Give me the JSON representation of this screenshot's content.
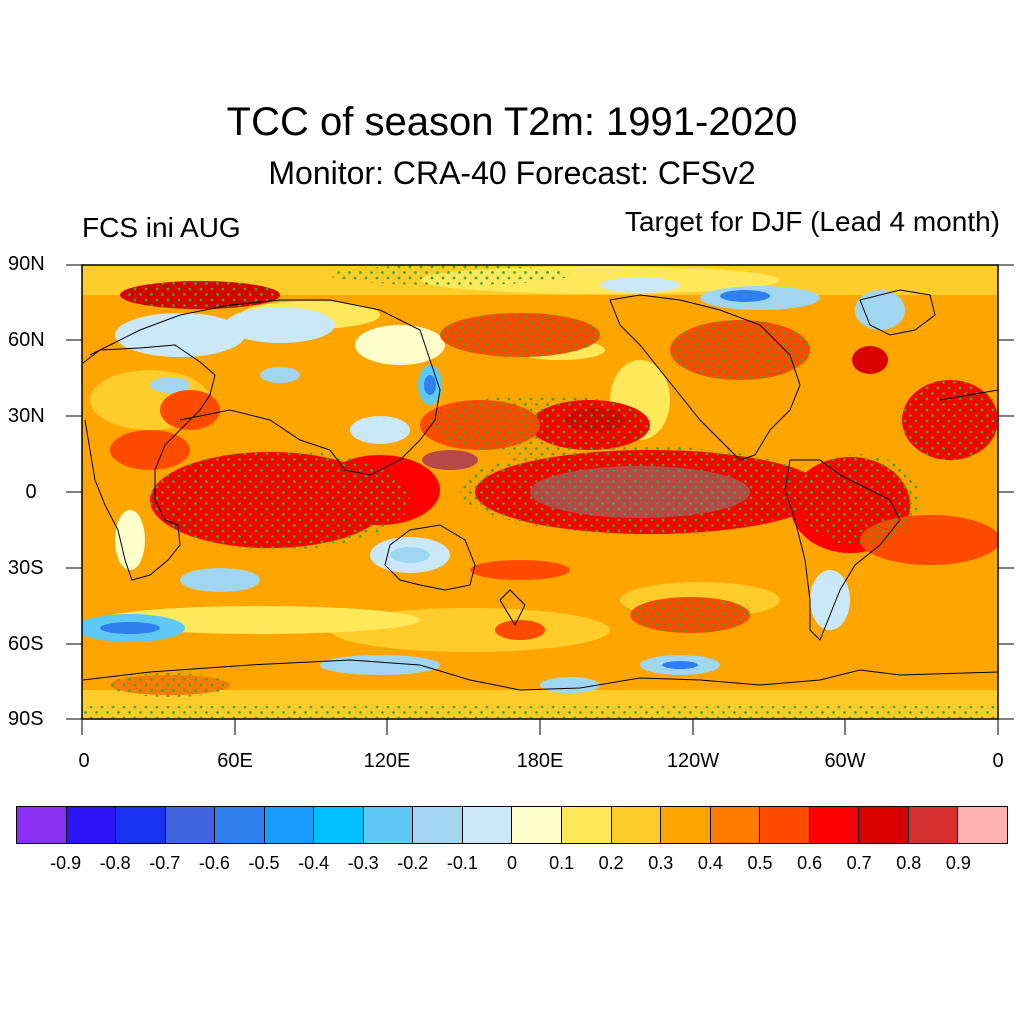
{
  "title": "TCC of season T2m: 1991-2020",
  "subtitle": "Monitor: CRA-40   Forecast: CFSv2",
  "left_label": "FCS ini AUG",
  "right_label": "Target for DJF (Lead 4 month)",
  "lat_labels": [
    "90N",
    "60N",
    "30N",
    "0",
    "30S",
    "60S",
    "90S"
  ],
  "lon_labels": [
    "0",
    "60E",
    "120E",
    "180E",
    "120W",
    "60W",
    "0"
  ],
  "colorbar": {
    "colors": [
      "#8b2ff0",
      "#2d12f6",
      "#1a33f0",
      "#4065e0",
      "#2f7ff0",
      "#1a9cff",
      "#00c0ff",
      "#5ec8f6",
      "#a0d6f0",
      "#cae8f8",
      "#ffffcc",
      "#ffe95a",
      "#ffcc2a",
      "#ffa500",
      "#ff7c00",
      "#ff4b00",
      "#ff0000",
      "#d90000",
      "#d63030",
      "#ffb0b0"
    ],
    "labels": [
      "-0.9",
      "-0.8",
      "-0.7",
      "-0.6",
      "-0.5",
      "-0.4",
      "-0.3",
      "-0.2",
      "-0.1",
      "0",
      "0.1",
      "0.2",
      "0.3",
      "0.4",
      "0.5",
      "0.6",
      "0.7",
      "0.8",
      "0.9"
    ]
  },
  "stipple_color": "#33aa33"
}
